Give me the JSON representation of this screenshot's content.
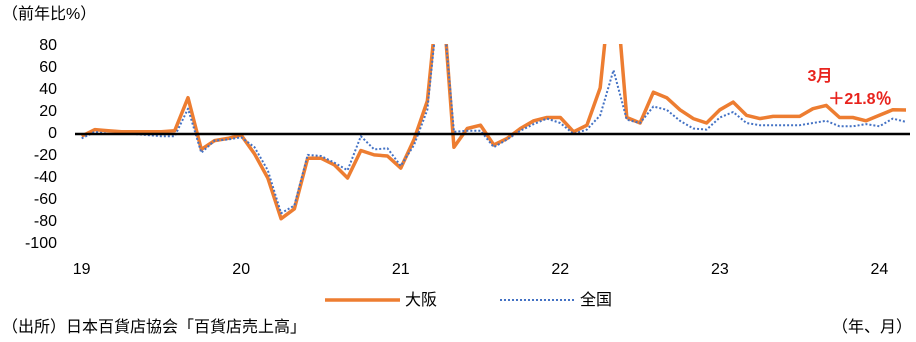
{
  "chart_data": {
    "type": "line",
    "unit_label": "（前年比%）",
    "x": [
      0,
      1,
      2,
      3,
      4,
      5,
      6,
      7,
      8,
      9,
      10,
      11,
      12,
      13,
      14,
      15,
      16,
      17,
      18,
      19,
      20,
      21,
      22,
      23,
      24,
      25,
      26,
      27,
      28,
      29,
      30,
      31,
      32,
      33,
      34,
      35,
      36,
      37,
      38,
      39,
      40,
      41,
      42,
      43,
      44,
      45,
      46,
      47,
      48,
      49,
      50,
      51,
      52,
      53,
      54,
      55,
      56,
      57,
      58,
      59,
      60,
      61,
      62
    ],
    "series": [
      {
        "name": "大阪",
        "color": "#ED7D31",
        "style": "solid",
        "values": [
          -2,
          4,
          3,
          2,
          2,
          2,
          2,
          3,
          33,
          -14,
          -6,
          -4,
          -1,
          -18,
          -40,
          -77,
          -68,
          -22,
          -22,
          -28,
          -40,
          -15,
          -19,
          -20,
          -31,
          -5,
          30,
          150,
          -12,
          5,
          8,
          -10,
          -4,
          5,
          12,
          15,
          15,
          2,
          8,
          42,
          160,
          15,
          10,
          38,
          33,
          22,
          14,
          10,
          22,
          29,
          17,
          14,
          16,
          16,
          16,
          23,
          26,
          15,
          15,
          12,
          17,
          22,
          21.8
        ]
      },
      {
        "name": "全国",
        "color": "#4472C4",
        "style": "dotted",
        "values": [
          -4,
          2,
          0,
          0,
          0,
          -1,
          -2,
          -2,
          23,
          -17,
          -6,
          -5,
          -3,
          -12,
          -33,
          -72,
          -65,
          -19,
          -20,
          -26,
          -33,
          -2,
          -14,
          -13,
          -29,
          -10,
          22,
          140,
          2,
          3,
          3,
          -12,
          -5,
          3,
          9,
          14,
          10,
          0,
          4,
          17,
          58,
          13,
          10,
          25,
          22,
          12,
          5,
          4,
          15,
          20,
          10,
          8,
          8,
          8,
          8,
          10,
          12,
          7,
          7,
          9,
          7,
          14,
          11
        ]
      }
    ],
    "xlim": [
      -0.5,
      62.3
    ],
    "xticks": [
      {
        "value": 0,
        "label": "19"
      },
      {
        "value": 12,
        "label": "20"
      },
      {
        "value": 24,
        "label": "21"
      },
      {
        "value": 36,
        "label": "22"
      },
      {
        "value": 48,
        "label": "23"
      },
      {
        "value": 60,
        "label": "24"
      }
    ],
    "ylim": [
      -100,
      80
    ],
    "yticks": [
      -100,
      -80,
      -60,
      -40,
      -20,
      0,
      20,
      40,
      60,
      80
    ],
    "annotations": [
      "3月",
      "＋21.8％"
    ],
    "source": "（出所）日本百貨店協会「百貨店売上高」",
    "x_label": "（年、月）",
    "legend": "bottom"
  }
}
